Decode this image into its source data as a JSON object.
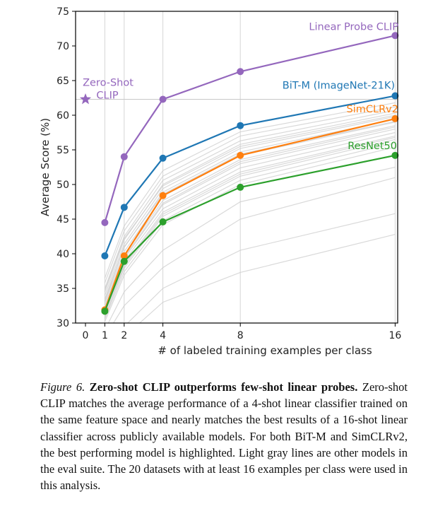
{
  "chart_data": {
    "type": "line",
    "xlabel": "# of labeled training examples per class",
    "ylabel": "Average Score (%)",
    "x_ticks": [
      0,
      1,
      2,
      4,
      8,
      16
    ],
    "y_ticks": [
      30,
      35,
      40,
      45,
      50,
      55,
      60,
      65,
      70,
      75
    ],
    "ylim": [
      30,
      75
    ],
    "grid": "vertical lines at x = 1, 2, 4, 8, 16",
    "series": [
      {
        "name": "Linear Probe CLIP",
        "color": "#9467bd",
        "x": [
          1,
          2,
          4,
          8,
          16
        ],
        "values": [
          44.5,
          54.0,
          62.3,
          66.3,
          71.5
        ]
      },
      {
        "name": "BiT-M (ImageNet-21K)",
        "color": "#1f77b4",
        "x": [
          1,
          2,
          4,
          8,
          16
        ],
        "values": [
          39.7,
          46.7,
          53.8,
          58.5,
          62.8
        ]
      },
      {
        "name": "SimCLRv2",
        "color": "#ff7f0e",
        "x": [
          1,
          2,
          4,
          8,
          16
        ],
        "values": [
          31.9,
          39.7,
          48.4,
          54.2,
          59.5
        ]
      },
      {
        "name": "ResNet50",
        "color": "#2ca02c",
        "x": [
          1,
          2,
          4,
          8,
          16
        ],
        "values": [
          31.7,
          38.9,
          44.6,
          49.6,
          54.2
        ]
      }
    ],
    "zero_shot": {
      "label_line1": "Zero-Shot",
      "label_line2": "CLIP",
      "x": 0,
      "y": 62.3,
      "color": "#9467bd"
    },
    "reference_line_y": 62.3,
    "other_models": {
      "color": "#cccccc",
      "lines": [
        [
          36.5,
          44.0,
          52.0,
          57.6,
          61.8
        ],
        [
          35.8,
          43.3,
          51.2,
          57.0,
          61.2
        ],
        [
          35.0,
          42.5,
          50.6,
          56.3,
          60.7
        ],
        [
          34.5,
          42.0,
          50.0,
          55.8,
          60.3
        ],
        [
          34.0,
          41.4,
          49.4,
          55.2,
          59.8
        ],
        [
          33.5,
          40.9,
          48.9,
          54.7,
          59.4
        ],
        [
          33.0,
          40.3,
          48.3,
          54.2,
          59.0
        ],
        [
          32.6,
          39.8,
          47.7,
          53.6,
          58.5
        ],
        [
          32.2,
          39.3,
          47.1,
          53.0,
          58.0
        ],
        [
          31.8,
          38.9,
          46.5,
          52.4,
          57.5
        ],
        [
          31.4,
          38.4,
          46.0,
          51.8,
          57.0
        ],
        [
          31.0,
          37.9,
          45.4,
          51.2,
          56.5
        ],
        [
          30.6,
          37.4,
          44.8,
          50.6,
          56.0
        ],
        [
          30.2,
          36.9,
          44.2,
          50.0,
          55.4
        ],
        [
          34.8,
          42.2,
          49.8,
          55.5,
          60.0
        ],
        [
          33.2,
          41.0,
          48.6,
          54.4,
          59.1
        ],
        [
          32.0,
          39.5,
          47.3,
          53.3,
          58.3
        ],
        [
          30.8,
          38.2,
          45.7,
          51.5,
          56.8
        ],
        [
          29.0,
          34.5,
          40.5,
          47.5,
          52.5
        ],
        [
          28.0,
          32.5,
          38.0,
          45.0,
          51.0
        ],
        [
          27.0,
          29.5,
          35.0,
          40.5,
          45.8
        ],
        [
          26.0,
          28.0,
          33.0,
          37.3,
          42.8
        ]
      ]
    }
  },
  "caption": {
    "lead": "Figure 6.",
    "title": "Zero-shot CLIP outperforms few-shot linear probes.",
    "body": "Zero-shot CLIP matches the average performance of a 4-shot linear classifier trained on the same feature space and nearly matches the best results of a 16-shot linear classifier across publicly available models. For both BiT-M and SimCLRv2, the best performing model is highlighted. Light gray lines are other models in the eval suite. The 20 datasets with at least 16 examples per class were used in this analysis."
  }
}
